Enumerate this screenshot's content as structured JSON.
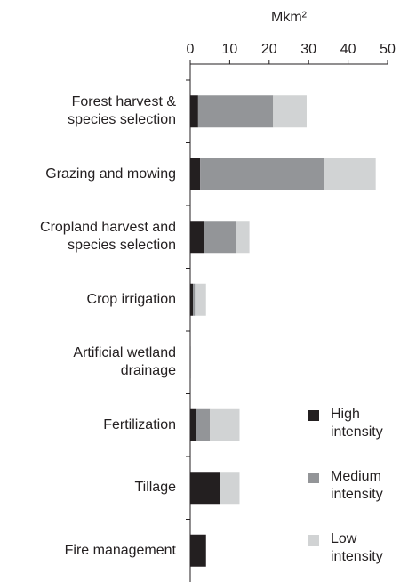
{
  "chart_data": {
    "type": "stacked-bar-horizontal",
    "x_label": "Mkm²",
    "categories": [
      "Forest harvest &\nspecies selection",
      "Grazing and mowing",
      "Cropland harvest and\nspecies selection",
      "Crop irrigation",
      "Artificial wetland\ndrainage",
      "Fertilization",
      "Tillage",
      "Fire management"
    ],
    "series": [
      {
        "name": "High\nintensity",
        "color": "#231f20",
        "values": [
          2,
          2.5,
          3.5,
          0.7,
          0.1,
          1.5,
          7.5,
          4
        ]
      },
      {
        "name": "Medium\nintensity",
        "color": "#939598",
        "values": [
          19,
          31.5,
          8,
          0.5,
          0,
          3.5,
          0,
          0
        ]
      },
      {
        "name": "Low\nintensity",
        "color": "#d1d3d4",
        "values": [
          8.5,
          13,
          3.5,
          2.8,
          0.1,
          7.5,
          5,
          0
        ]
      }
    ],
    "xlim": [
      0,
      50
    ],
    "xticks": [
      0,
      10,
      20,
      30,
      40,
      50
    ],
    "legend": "lower right"
  }
}
